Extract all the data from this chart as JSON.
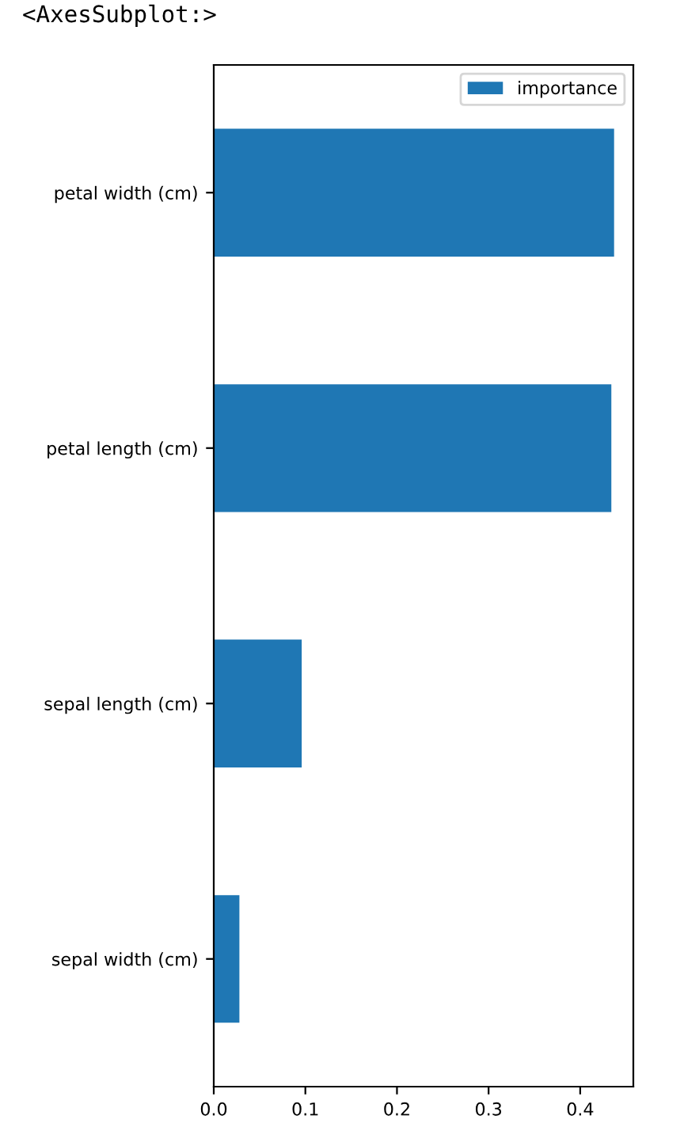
{
  "chart_data": {
    "type": "bar",
    "orientation": "horizontal",
    "categories": [
      "petal width (cm)",
      "petal length (cm)",
      "sepal length (cm)",
      "sepal width (cm)"
    ],
    "series": [
      {
        "name": "importance",
        "color": "#1f77b4",
        "values": [
          0.437,
          0.434,
          0.096,
          0.028
        ]
      }
    ],
    "xlim": [
      0,
      0.458
    ],
    "xticks": [
      {
        "value": 0,
        "label": "0.0"
      },
      {
        "value": 0.1,
        "label": "0.1"
      },
      {
        "value": 0.2,
        "label": "0.2"
      },
      {
        "value": 0.3,
        "label": "0.3"
      },
      {
        "value": 0.4,
        "label": "0.4"
      }
    ],
    "legend": "top right",
    "grid": false,
    "annotations": [
      "<AxesSubplot:>"
    ]
  }
}
